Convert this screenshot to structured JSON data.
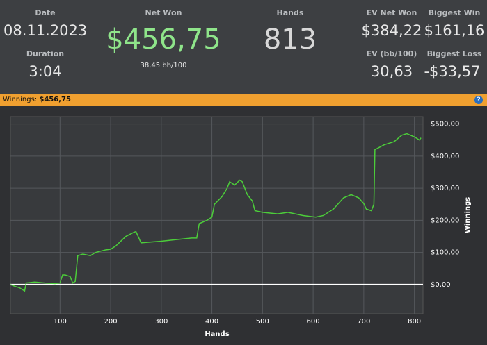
{
  "header": {
    "date_label": "Date",
    "date": "08.11.2023",
    "duration_label": "Duration",
    "duration": "3:04",
    "net_won_label": "Net Won",
    "net_won": "$456,75",
    "bb_per_100": "38,45 bb/100",
    "hands_label": "Hands",
    "hands": "813",
    "ev_net_won_label": "EV Net Won",
    "ev_net_won": "$384,22",
    "ev_bb_label": "EV (bb/100)",
    "ev_bb": "30,63",
    "biggest_win_label": "Biggest Win",
    "biggest_win": "$161,16",
    "biggest_loss_label": "Biggest Loss",
    "biggest_loss": "-$33,57"
  },
  "banner": {
    "label": "Winnings:",
    "value": "$456,75"
  },
  "chart_data": {
    "type": "line",
    "x_label": "Hands",
    "y_label": "Winnings",
    "grid": true,
    "xlim": [
      2,
      817
    ],
    "ylim": [
      -91,
      523
    ],
    "xticks": [
      100,
      200,
      300,
      400,
      500,
      600,
      700,
      800
    ],
    "yticks": [
      {
        "value": 0,
        "label": "$0,00"
      },
      {
        "value": 100,
        "label": "$100,00"
      },
      {
        "value": 200,
        "label": "$200,00"
      },
      {
        "value": 300,
        "label": "$300,00"
      },
      {
        "value": 400,
        "label": "$400,00"
      },
      {
        "value": 500,
        "label": "$500,00"
      }
    ],
    "series": [
      {
        "name": "Winnings",
        "color": "#4ccd3a",
        "x": [
          2,
          10,
          20,
          30,
          33,
          50,
          70,
          90,
          100,
          105,
          110,
          120,
          125,
          130,
          135,
          145,
          160,
          170,
          190,
          200,
          210,
          230,
          245,
          250,
          260,
          300,
          330,
          360,
          370,
          375,
          390,
          400,
          405,
          420,
          430,
          435,
          445,
          455,
          460,
          470,
          480,
          485,
          500,
          530,
          550,
          580,
          605,
          620,
          640,
          660,
          675,
          690,
          700,
          705,
          715,
          720,
          722,
          740,
          760,
          775,
          785,
          800,
          810,
          813
        ],
        "values": [
          0,
          -5,
          -10,
          -20,
          5,
          8,
          5,
          3,
          5,
          30,
          30,
          25,
          5,
          10,
          90,
          95,
          90,
          100,
          108,
          110,
          120,
          150,
          162,
          165,
          130,
          135,
          140,
          145,
          145,
          190,
          200,
          210,
          250,
          274,
          300,
          320,
          310,
          325,
          320,
          280,
          260,
          230,
          225,
          220,
          225,
          215,
          210,
          215,
          235,
          270,
          280,
          270,
          252,
          235,
          230,
          250,
          420,
          435,
          445,
          465,
          470,
          460,
          450,
          457
        ]
      }
    ]
  }
}
